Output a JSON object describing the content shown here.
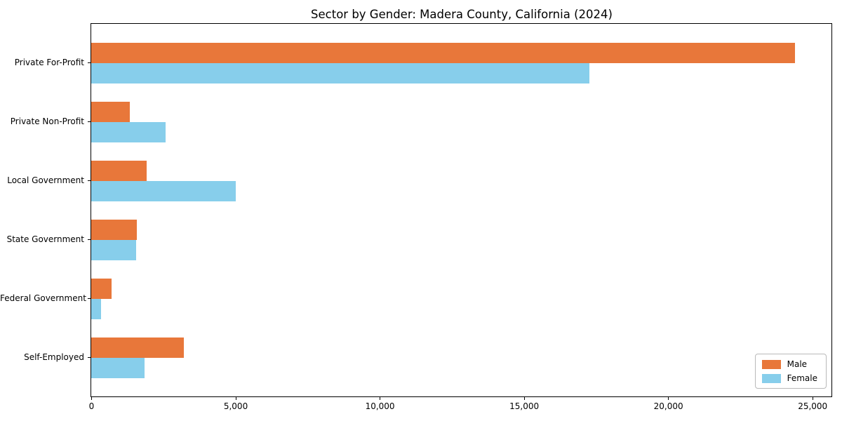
{
  "chart_data": {
    "type": "bar",
    "orientation": "horizontal",
    "title": "Sector by Gender: Madera County, California (2024)",
    "categories": [
      "Private For-Profit",
      "Private Non-Profit",
      "Local Government",
      "State Government",
      "Federal Government",
      "Self-Employed"
    ],
    "series": [
      {
        "name": "Male",
        "color": "#e8773a",
        "values": [
          24390,
          1330,
          1910,
          1590,
          700,
          3200
        ]
      },
      {
        "name": "Female",
        "color": "#87ceeb",
        "values": [
          17260,
          2580,
          5020,
          1550,
          340,
          1850
        ]
      }
    ],
    "x_ticks": [
      {
        "value": 0,
        "label": "0"
      },
      {
        "value": 5000,
        "label": "5,000"
      },
      {
        "value": 10000,
        "label": "10,000"
      },
      {
        "value": 15000,
        "label": "15,000"
      },
      {
        "value": 20000,
        "label": "20,000"
      },
      {
        "value": 25000,
        "label": "25,000"
      }
    ],
    "xlim": [
      0,
      25640
    ],
    "xlabel": "",
    "ylabel": "",
    "grid": false,
    "legend_position": "lower right"
  }
}
